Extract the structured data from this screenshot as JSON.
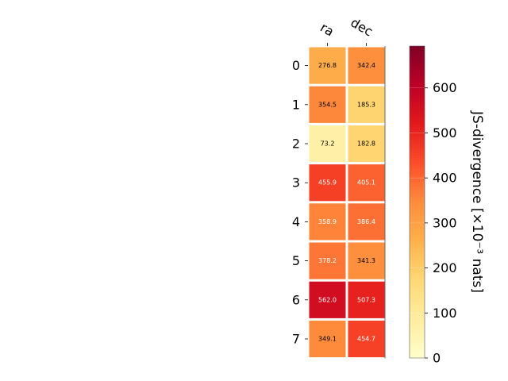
{
  "chart_data": {
    "type": "heatmap",
    "columns": [
      "ra",
      "dec"
    ],
    "rows": [
      "0",
      "1",
      "2",
      "3",
      "4",
      "5",
      "6",
      "7"
    ],
    "values": [
      [
        276.8,
        342.4
      ],
      [
        354.5,
        185.3
      ],
      [
        73.2,
        182.8
      ],
      [
        455.9,
        405.1
      ],
      [
        358.9,
        386.4
      ],
      [
        378.2,
        341.3
      ],
      [
        562.0,
        507.3
      ],
      [
        349.1,
        454.7
      ]
    ],
    "value_labels": [
      [
        "276.8",
        "342.4"
      ],
      [
        "354.5",
        "185.3"
      ],
      [
        "73.2",
        "182.8"
      ],
      [
        "455.9",
        "405.1"
      ],
      [
        "358.9",
        "386.4"
      ],
      [
        "378.2",
        "341.3"
      ],
      [
        "562.0",
        "507.3"
      ],
      [
        "349.1",
        "454.7"
      ]
    ],
    "colormap": "YlOrRd",
    "colorbar": {
      "label": "JS-divergence [×10⁻³ nats]",
      "ticks": [
        0,
        100,
        200,
        300,
        400,
        500,
        600
      ],
      "tick_labels": [
        "0",
        "100",
        "200",
        "300",
        "400",
        "500",
        "600"
      ],
      "range": [
        0,
        693
      ]
    }
  }
}
